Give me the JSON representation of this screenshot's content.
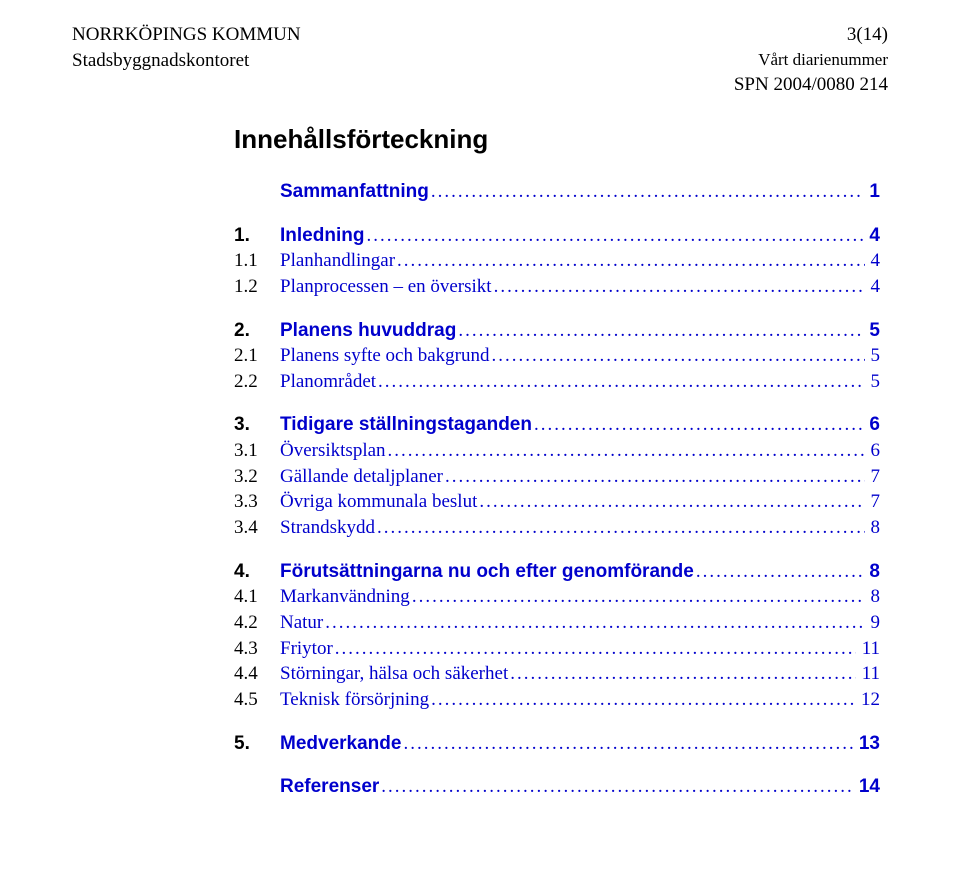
{
  "header": {
    "org": "NORRKÖPINGS KOMMUN",
    "page_num": "3(14)",
    "dept": "Stadsbyggnadskontoret",
    "ref_label": "Vårt diarienummer",
    "ref_value": "SPN 2004/0080 214"
  },
  "title": "Innehållsförteckning",
  "dots": ".........................................................................................................................................",
  "toc": [
    {
      "num": "",
      "label": "Sammanfattning",
      "page": "1",
      "bold": true,
      "link": true
    },
    {
      "gap": true
    },
    {
      "num": "1.",
      "label": "Inledning",
      "page": "4",
      "bold": true,
      "link": true
    },
    {
      "num": "1.1",
      "label": "Planhandlingar",
      "page": "4",
      "bold": false,
      "link": true
    },
    {
      "num": "1.2",
      "label": "Planprocessen – en översikt",
      "page": "4",
      "bold": false,
      "link": true
    },
    {
      "gap": true
    },
    {
      "num": "2.",
      "label": "Planens huvuddrag",
      "page": "5",
      "bold": true,
      "link": true
    },
    {
      "num": "2.1",
      "label": "Planens syfte och bakgrund",
      "page": "5",
      "bold": false,
      "link": true
    },
    {
      "num": "2.2",
      "label": "Planområdet",
      "page": "5",
      "bold": false,
      "link": true
    },
    {
      "gap": true
    },
    {
      "num": "3.",
      "label": "Tidigare ställningstaganden",
      "page": "6",
      "bold": true,
      "link": true
    },
    {
      "num": "3.1",
      "label": "Översiktsplan",
      "page": "6",
      "bold": false,
      "link": true
    },
    {
      "num": "3.2",
      "label": "Gällande detaljplaner",
      "page": "7",
      "bold": false,
      "link": true
    },
    {
      "num": "3.3",
      "label": "Övriga kommunala beslut",
      "page": "7",
      "bold": false,
      "link": true
    },
    {
      "num": "3.4",
      "label": "Strandskydd",
      "page": "8",
      "bold": false,
      "link": true
    },
    {
      "gap": true
    },
    {
      "num": "4.",
      "label": "Förutsättningarna nu och efter genomförande",
      "page": "8",
      "bold": true,
      "link": true
    },
    {
      "num": "4.1",
      "label": "Markanvändning",
      "page": "8",
      "bold": false,
      "link": true
    },
    {
      "num": "4.2",
      "label": "Natur",
      "page": "9",
      "bold": false,
      "link": true
    },
    {
      "num": "4.3",
      "label": "Friytor",
      "page": "11",
      "bold": false,
      "link": true
    },
    {
      "num": "4.4",
      "label": "Störningar, hälsa och säkerhet",
      "page": "11",
      "bold": false,
      "link": true
    },
    {
      "num": "4.5",
      "label": "Teknisk försörjning",
      "page": "12",
      "bold": false,
      "link": true
    },
    {
      "gap": true
    },
    {
      "num": "5.",
      "label": "Medverkande",
      "page": "13",
      "bold": true,
      "link": true
    },
    {
      "gap": true
    },
    {
      "num": "",
      "label": "Referenser",
      "page": "14",
      "bold": true,
      "link": true
    }
  ]
}
